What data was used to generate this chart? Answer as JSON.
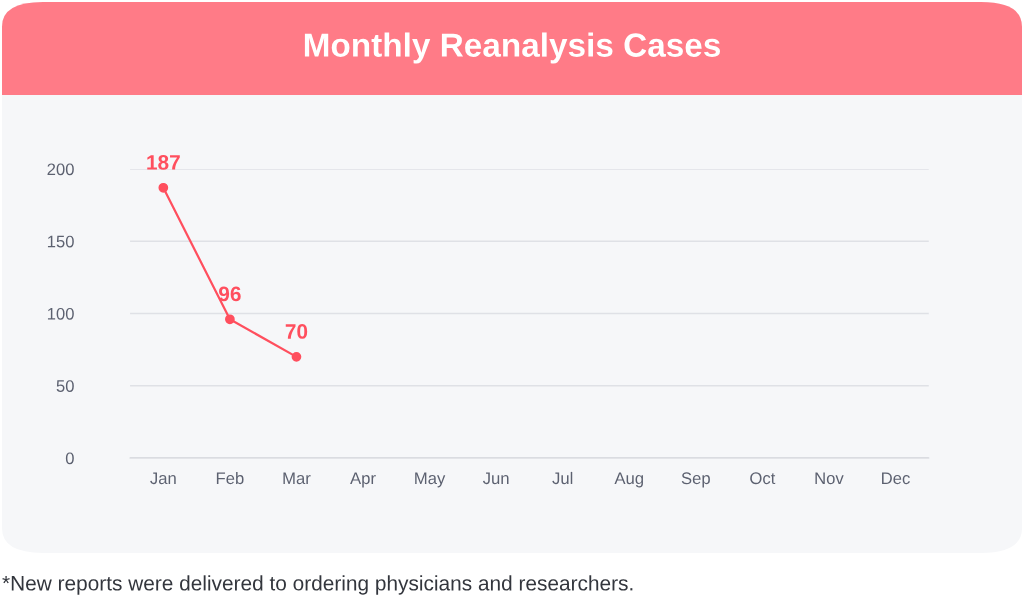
{
  "chart_data": {
    "type": "line",
    "title": "Monthly Reanalysis Cases",
    "categories": [
      "Jan",
      "Feb",
      "Mar",
      "Apr",
      "May",
      "Jun",
      "Jul",
      "Aug",
      "Sep",
      "Oct",
      "Nov",
      "Dec"
    ],
    "series": [
      {
        "color": "#ff4f5e",
        "values": [
          187,
          96,
          70,
          null,
          null,
          null,
          null,
          null,
          null,
          null,
          null,
          null
        ]
      }
    ],
    "ylim": [
      0,
      200
    ],
    "yticks": [
      0,
      50,
      100,
      150,
      200
    ],
    "grid": "y",
    "marker": "circle",
    "line_style": "solid",
    "data_labels": true,
    "annotations": [
      "*New reports were delivered to ordering physicians and researchers."
    ]
  }
}
